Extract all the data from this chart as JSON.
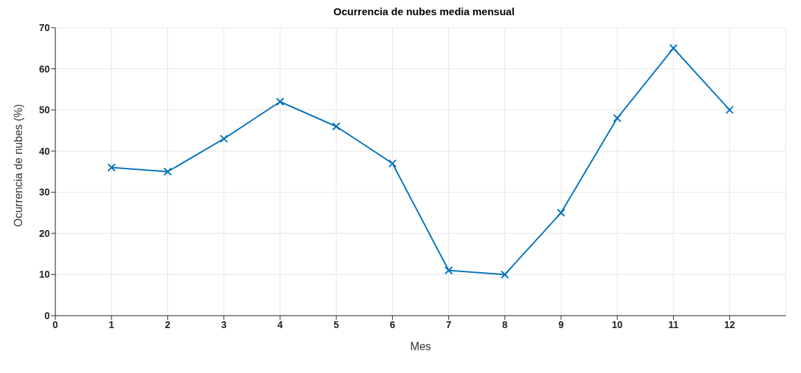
{
  "chart_data": {
    "type": "line",
    "title": "Ocurrencia de nubes media mensual",
    "xlabel": "Mes",
    "ylabel": "Ocurrencia de nubes (%)",
    "x": [
      1,
      2,
      3,
      4,
      5,
      6,
      7,
      8,
      9,
      10,
      11,
      12
    ],
    "series": [
      {
        "color": "#0072bd",
        "values": [
          36,
          35,
          43,
          52,
          46,
          37,
          11,
          10,
          25,
          48,
          65,
          50
        ]
      }
    ],
    "xlim": [
      0,
      13
    ],
    "xticks": [
      0,
      1,
      2,
      3,
      4,
      5,
      6,
      7,
      8,
      9,
      10,
      11,
      12
    ],
    "ylim": [
      0,
      70
    ],
    "yticks": [
      0,
      10,
      20,
      30,
      40,
      50,
      60,
      70
    ],
    "grid": true,
    "marker": "cross",
    "line_style": "solid"
  }
}
